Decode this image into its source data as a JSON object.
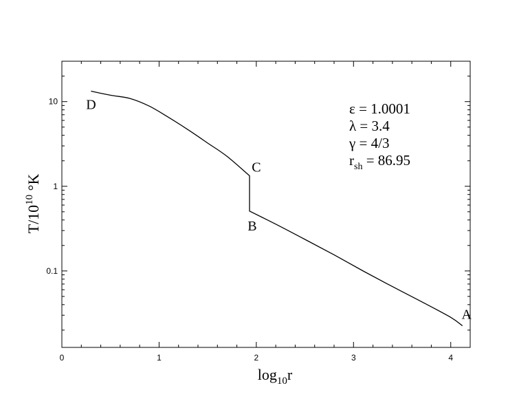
{
  "chart_data": {
    "type": "line",
    "xlabel": {
      "main": "log",
      "sub": "10",
      "tail": "r"
    },
    "ylabel": {
      "main": "T/10",
      "sup": "10",
      "tail": " °K"
    },
    "xlim": [
      0,
      4.2
    ],
    "ylim": [
      0.0125,
      30
    ],
    "yscale": "log",
    "x_ticks": [
      0,
      1,
      2,
      3,
      4
    ],
    "x_tick_labels": [
      "0",
      "1",
      "2",
      "3",
      "4"
    ],
    "y_ticks": [
      0.1,
      1,
      10
    ],
    "y_tick_labels": [
      "0.1",
      "1",
      "10"
    ],
    "grid": false,
    "series": [
      {
        "x": [
          0.3,
          0.5,
          0.7,
          0.9,
          1.1,
          1.3,
          1.5,
          1.7,
          1.93,
          1.93,
          2.2,
          2.5,
          2.8,
          3.1,
          3.4,
          3.7,
          4.0,
          4.12
        ],
        "y": [
          13.3,
          11.9,
          10.9,
          8.84,
          6.49,
          4.64,
          3.24,
          2.25,
          1.33,
          0.51,
          0.357,
          0.236,
          0.155,
          0.0998,
          0.0653,
          0.0433,
          0.0283,
          0.0225
        ]
      }
    ],
    "point_labels": [
      {
        "text": "D",
        "x": 0.3,
        "y": 13.3
      },
      {
        "text": "C",
        "x": 1.93,
        "y": 1.33
      },
      {
        "text": "B",
        "x": 1.93,
        "y": 0.51
      },
      {
        "text": "A",
        "x": 4.12,
        "y": 0.0225
      }
    ],
    "annotations": [
      {
        "main": "ε = 1.0001",
        "sub": "",
        "tail": ""
      },
      {
        "main": "λ = 3.4",
        "sub": "",
        "tail": ""
      },
      {
        "main": "γ = 4/3",
        "sub": "",
        "tail": ""
      },
      {
        "main": "r",
        "sub": "sh",
        "tail": " = 86.95"
      }
    ]
  }
}
